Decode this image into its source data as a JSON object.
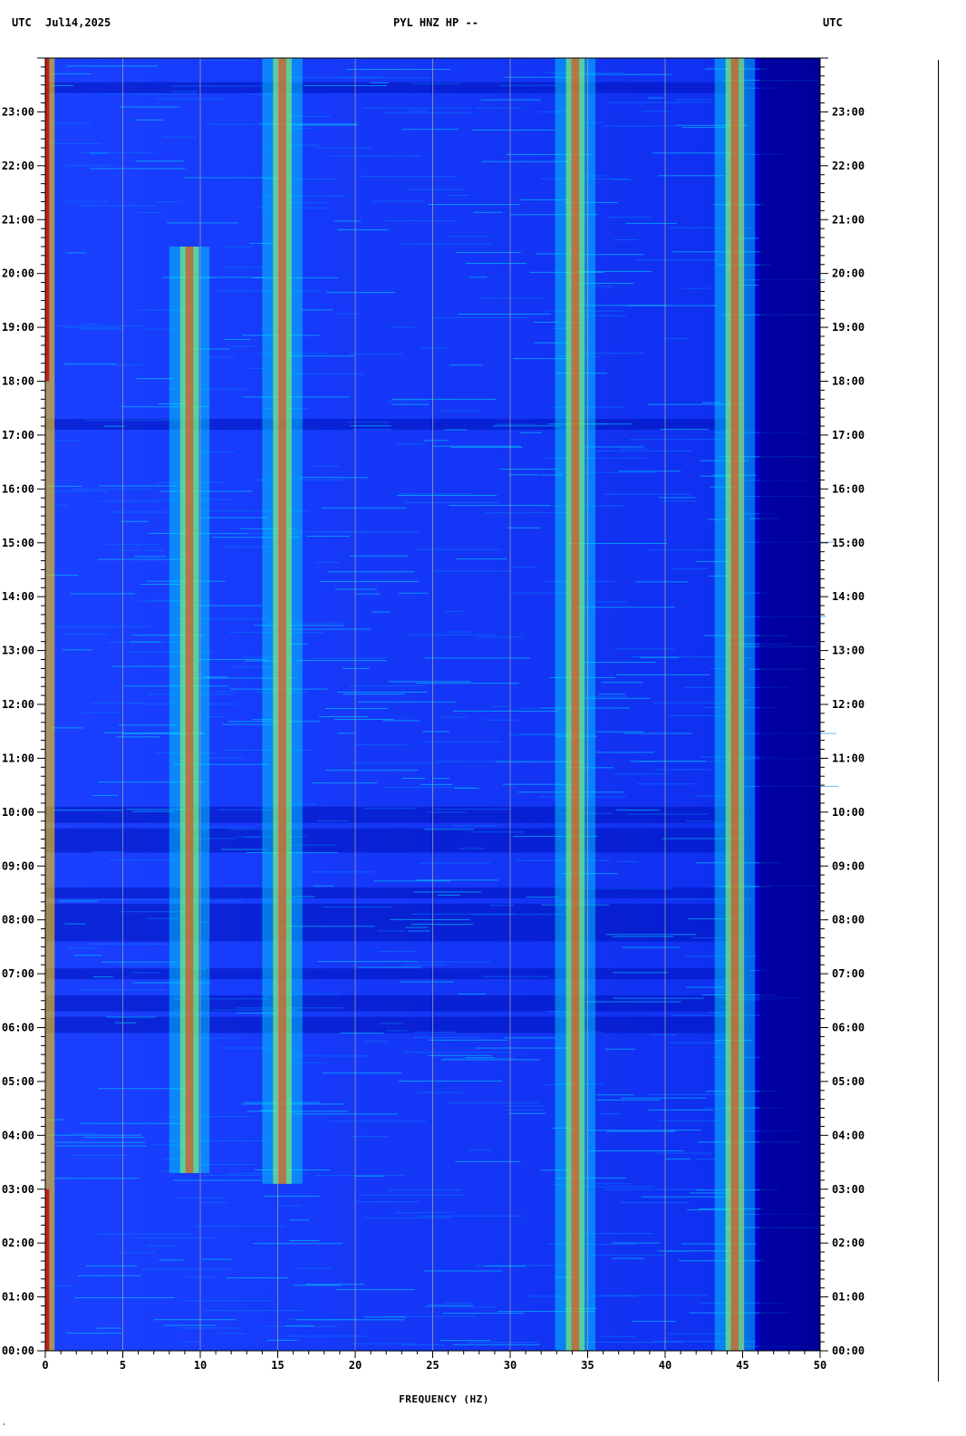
{
  "header": {
    "left_tz": "UTC",
    "date": "Jul14,2025",
    "station": "PYL HNZ HP --",
    "right_tz": "UTC"
  },
  "corner_mark": "'",
  "chart_data": {
    "type": "heatmap",
    "title": "PYL HNZ HP --",
    "xlabel": "FREQUENCY (HZ)",
    "ylabel": "",
    "xlim": [
      0,
      50
    ],
    "ylim": [
      0,
      24
    ],
    "x_ticks": [
      0,
      5,
      10,
      15,
      20,
      25,
      30,
      35,
      40,
      45,
      50
    ],
    "x_tick_labels": [
      "0",
      "5",
      "10",
      "15",
      "20",
      "25",
      "30",
      "35",
      "40",
      "45",
      "50"
    ],
    "y_ticks": [
      0,
      1,
      2,
      3,
      4,
      5,
      6,
      7,
      8,
      9,
      10,
      11,
      12,
      13,
      14,
      15,
      16,
      17,
      18,
      19,
      20,
      21,
      22,
      23
    ],
    "y_tick_labels": [
      "00:00",
      "01:00",
      "02:00",
      "03:00",
      "04:00",
      "05:00",
      "06:00",
      "07:00",
      "08:00",
      "09:00",
      "10:00",
      "11:00",
      "12:00",
      "13:00",
      "14:00",
      "15:00",
      "16:00",
      "17:00",
      "18:00",
      "19:00",
      "20:00",
      "21:00",
      "22:00",
      "23:00"
    ],
    "grid": true,
    "colormap": [
      "#00008b",
      "#0000ff",
      "#0080ff",
      "#00e0ff",
      "#80ff80",
      "#ffff00",
      "#ff8000",
      "#ff0000",
      "#8b0000"
    ],
    "spectral_lines_hz": [
      {
        "freq": 9.3,
        "from": 3.3,
        "to": 20.5
      },
      {
        "freq": 15.3,
        "from": 3.1,
        "to": 24
      },
      {
        "freq": 34.2,
        "from": 0,
        "to": 24
      },
      {
        "freq": 44.5,
        "from": 0,
        "to": 24
      }
    ],
    "noise_cutoff_hz": 45.5
  }
}
